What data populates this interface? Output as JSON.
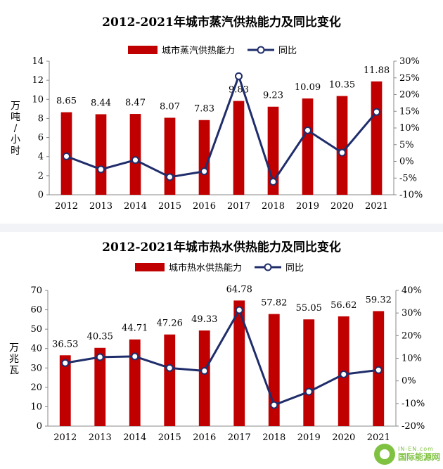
{
  "chart_data": [
    {
      "type": "bar",
      "title": "2012-2021年城市蒸汽供热能力及同比变化",
      "ylabel": "万吨/小时",
      "categories": [
        "2012",
        "2013",
        "2014",
        "2015",
        "2016",
        "2017",
        "2018",
        "2019",
        "2020",
        "2021"
      ],
      "series": [
        {
          "name": "城市蒸汽供热能力",
          "type": "bar",
          "axis": "left",
          "values": [
            8.65,
            8.44,
            8.47,
            8.07,
            7.83,
            9.83,
            9.23,
            10.09,
            10.35,
            11.88
          ],
          "labels": [
            "8.65",
            "8.44",
            "8.47",
            "8.07",
            "7.83",
            "9.83",
            "9.23",
            "10.09",
            "10.35",
            "11.88"
          ]
        },
        {
          "name": "同比",
          "type": "line",
          "axis": "right",
          "values": [
            1.5,
            -2.4,
            0.4,
            -4.7,
            -3.0,
            25.5,
            -6.1,
            9.3,
            2.6,
            14.8
          ]
        }
      ],
      "ylim": [
        0,
        14
      ],
      "yticks": [
        "0",
        "2",
        "4",
        "6",
        "8",
        "10",
        "12",
        "14"
      ],
      "y2lim": [
        -10,
        30
      ],
      "y2ticks": [
        "-10%",
        "-5%",
        "0%",
        "5%",
        "10%",
        "15%",
        "20%",
        "25%",
        "30%"
      ],
      "legend": "top-center",
      "grid": false,
      "colors": {
        "bar": "#c00000",
        "line": "#1f2d6b"
      }
    },
    {
      "type": "bar",
      "title": "2012-2021年城市热水供热能力及同比变化",
      "ylabel": "万兆瓦",
      "categories": [
        "2012",
        "2013",
        "2014",
        "2015",
        "2016",
        "2017",
        "2018",
        "2019",
        "2020",
        "2021"
      ],
      "series": [
        {
          "name": "城市热水供热能力",
          "type": "bar",
          "axis": "left",
          "values": [
            36.53,
            40.35,
            44.71,
            47.26,
            49.33,
            64.78,
            57.82,
            55.05,
            56.62,
            59.32
          ],
          "labels": [
            "36.53",
            "40.35",
            "44.71",
            "47.26",
            "49.33",
            "64.78",
            "57.82",
            "55.05",
            "56.62",
            "59.32"
          ]
        },
        {
          "name": "同比",
          "type": "line",
          "axis": "right",
          "values": [
            7.9,
            10.5,
            10.8,
            5.7,
            4.4,
            31.3,
            -10.7,
            -4.8,
            2.9,
            4.8
          ]
        }
      ],
      "ylim": [
        0,
        70
      ],
      "yticks": [
        "0",
        "10",
        "20",
        "30",
        "40",
        "50",
        "60",
        "70"
      ],
      "y2lim": [
        -20,
        40
      ],
      "y2ticks": [
        "-20%",
        "-10%",
        "0%",
        "10%",
        "20%",
        "30%",
        "40%"
      ],
      "legend": "top-center",
      "grid": false,
      "colors": {
        "bar": "#c00000",
        "line": "#1f2d6b"
      }
    }
  ],
  "watermark": {
    "url": "IN-EN.com",
    "name": "国际能源网"
  }
}
